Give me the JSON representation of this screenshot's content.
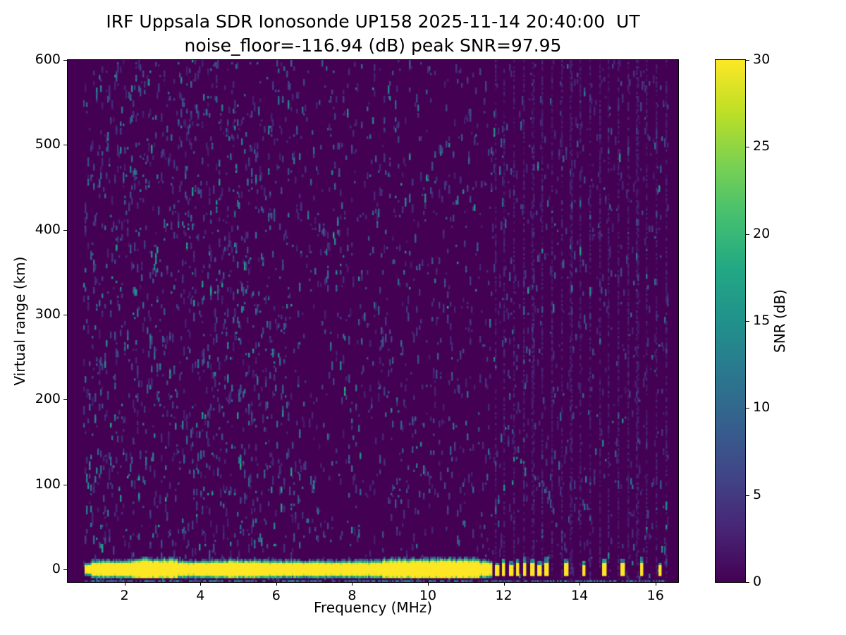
{
  "chart_data": {
    "type": "heatmap",
    "title": "IRF Uppsala SDR Ionosonde UP158 2025-11-14 20:40:00  UT",
    "subtitle": "noise_floor=-116.94 (dB) peak SNR=97.95",
    "station": "UP158",
    "timestamp_ut": "2025-11-14 20:40:00",
    "noise_floor_db": -116.94,
    "peak_snr_db": 97.95,
    "xlabel": "Frequency (MHz)",
    "ylabel": "Virtual range (km)",
    "colorbar_label": "SNR (dB)",
    "xlim": [
      0.5,
      16.6
    ],
    "ylim": [
      -15,
      600
    ],
    "clim": [
      0,
      30
    ],
    "x_ticks": [
      2,
      4,
      6,
      8,
      10,
      12,
      14,
      16
    ],
    "y_ticks": [
      0,
      100,
      200,
      300,
      400,
      500,
      600
    ],
    "colorbar_ticks": [
      0,
      5,
      10,
      15,
      20,
      25,
      30
    ],
    "grid": false,
    "colormap": "viridis",
    "colormap_stops": [
      {
        "t": 0.0,
        "color": "#440154"
      },
      {
        "t": 0.1,
        "color": "#482475"
      },
      {
        "t": 0.2,
        "color": "#414487"
      },
      {
        "t": 0.3,
        "color": "#355f8d"
      },
      {
        "t": 0.4,
        "color": "#2a788e"
      },
      {
        "t": 0.5,
        "color": "#21918c"
      },
      {
        "t": 0.6,
        "color": "#22a884"
      },
      {
        "t": 0.7,
        "color": "#44bf70"
      },
      {
        "t": 0.8,
        "color": "#7ad151"
      },
      {
        "t": 0.9,
        "color": "#bddf26"
      },
      {
        "t": 1.0,
        "color": "#fde725"
      }
    ],
    "features": {
      "ground_echo": {
        "freq_start_mhz": 0.95,
        "freq_end_mhz": 11.7,
        "range_center_km": 0,
        "half_width_km": 6.5,
        "snr_db": 30
      },
      "rfi_spike_freqs_mhz": [
        11.78,
        11.97,
        12.16,
        12.34,
        12.53,
        12.71,
        12.9,
        13.09,
        13.6,
        14.1,
        14.6,
        15.1,
        15.6,
        16.1
      ],
      "noise_speckle": {
        "dense_freq_range_mhz": [
          1.0,
          6.5
        ],
        "typical_snr_db": [
          3,
          18
        ]
      },
      "faint_stripe_freq_range_mhz": [
        11.75,
        16.35
      ],
      "bottom_scatter_range_km": -14
    },
    "seed": 20401114
  }
}
